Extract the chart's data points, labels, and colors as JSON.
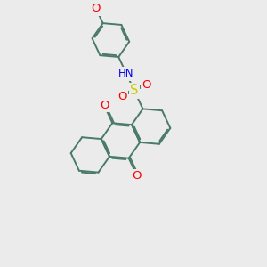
{
  "bg_color": "#ebebeb",
  "bond_color": "#4a7a6a",
  "bond_width": 1.4,
  "dbo": 0.055,
  "atom_colors": {
    "O": "#ff0000",
    "N": "#0000ee",
    "S": "#cccc00",
    "C": "#4a7a6a"
  },
  "font_size": 8.5,
  "fig_size": [
    3.0,
    3.0
  ],
  "dpi": 100
}
